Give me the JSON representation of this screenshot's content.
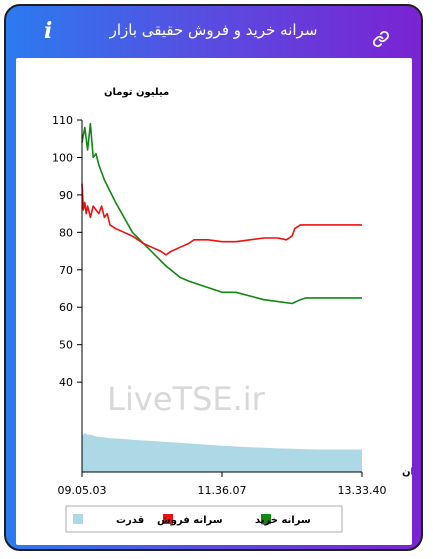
{
  "header": {
    "title": "سرانه خرید و فروش حقیقی بازار",
    "info_icon": "i",
    "link_icon": "link-icon"
  },
  "colors": {
    "frame_left": "#2b7bf0",
    "frame_right": "#7a23d2",
    "sell": "#ee1111",
    "buy": "#118811",
    "power": "#add8e6"
  },
  "chart_data": {
    "type": "line",
    "ylabel": "میلیون تومان",
    "xlabel": "زمان",
    "yticks": [
      40,
      50,
      60,
      70,
      80,
      90,
      100,
      110
    ],
    "ylim": [
      16,
      110
    ],
    "xlim": [
      0,
      100
    ],
    "xticks": [
      {
        "x": 0,
        "label": "09.05.03"
      },
      {
        "x": 50,
        "label": "11.36.07"
      },
      {
        "x": 100,
        "label": "13.33.40"
      }
    ],
    "watermark": "LiveTSE.ir",
    "legend": [
      {
        "name": "سرانه خرید",
        "color": "#118811"
      },
      {
        "name": "سرانه فروش",
        "color": "#ee1111"
      },
      {
        "name": "قدرت",
        "color": "#add8e6"
      }
    ],
    "series": [
      {
        "name": "سرانه خرید",
        "color": "#118811",
        "x": [
          0,
          1,
          2,
          3,
          4,
          5,
          6,
          7,
          8,
          10,
          12,
          15,
          18,
          22,
          26,
          30,
          35,
          38,
          42,
          46,
          50,
          55,
          60,
          65,
          70,
          75,
          78,
          80,
          85,
          90,
          95,
          100
        ],
        "y": [
          104,
          108,
          102,
          109,
          100,
          101,
          98,
          96,
          94,
          91,
          88,
          84,
          80,
          77,
          74,
          71,
          68,
          67,
          66,
          65,
          64,
          64,
          63,
          62,
          61.5,
          61,
          62,
          62.5,
          62.5,
          62.5,
          62.5,
          62.5
        ]
      },
      {
        "name": "سرانه فروش",
        "color": "#ee1111",
        "x": [
          0,
          0.5,
          1,
          1.5,
          2,
          3,
          4,
          5,
          6,
          7,
          8,
          9,
          10,
          12,
          15,
          18,
          20,
          22,
          25,
          28,
          30,
          32,
          35,
          38,
          40,
          45,
          50,
          55,
          60,
          65,
          70,
          73,
          75,
          76,
          78,
          80,
          85,
          90,
          95,
          100
        ],
        "y": [
          93,
          86,
          88,
          85,
          87,
          84,
          87,
          86,
          85,
          87,
          84,
          85,
          82,
          81,
          80,
          79,
          78,
          77,
          76,
          75,
          74,
          75,
          76,
          77,
          78,
          78,
          77.5,
          77.5,
          78,
          78.5,
          78.5,
          78,
          79,
          81,
          82,
          82,
          82,
          82,
          82,
          82
        ]
      },
      {
        "name": "قدرت",
        "color": "#add8e6",
        "x": [
          0,
          1,
          2,
          3,
          5,
          8,
          10,
          15,
          20,
          25,
          30,
          35,
          40,
          45,
          50,
          55,
          60,
          65,
          70,
          75,
          80,
          85,
          90,
          95,
          100
        ],
        "y": [
          25.5,
          26.5,
          26,
          26,
          25.5,
          25.2,
          25,
          24.8,
          24.5,
          24.3,
          24,
          23.8,
          23.5,
          23.3,
          23,
          22.8,
          22.6,
          22.5,
          22.3,
          22.2,
          22.1,
          22,
          22,
          22,
          22
        ]
      }
    ]
  }
}
